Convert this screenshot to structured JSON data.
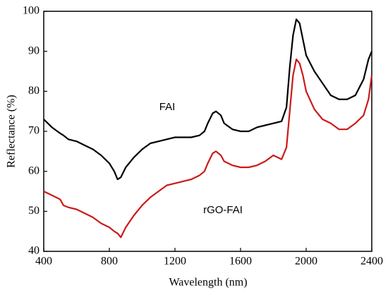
{
  "chart_data": {
    "type": "line",
    "x_label": "Wavelength (nm)",
    "y_label": "Reflectance (%)",
    "xlim": [
      400,
      2400
    ],
    "ylim": [
      40,
      100
    ],
    "xticks": [
      400,
      800,
      1200,
      1600,
      2000,
      2400
    ],
    "yticks": [
      40,
      50,
      60,
      70,
      80,
      90,
      100
    ],
    "x": [
      400,
      450,
      500,
      520,
      550,
      600,
      650,
      700,
      750,
      800,
      830,
      850,
      870,
      900,
      950,
      1000,
      1050,
      1100,
      1150,
      1200,
      1250,
      1300,
      1350,
      1380,
      1400,
      1430,
      1450,
      1480,
      1500,
      1550,
      1600,
      1650,
      1700,
      1750,
      1800,
      1850,
      1880,
      1900,
      1920,
      1940,
      1960,
      1980,
      2000,
      2050,
      2100,
      2150,
      2200,
      2250,
      2300,
      2350,
      2380,
      2400
    ],
    "series": [
      {
        "name": "FAI",
        "color": "#000000",
        "values": [
          73,
          71,
          69.5,
          69,
          68,
          67.5,
          66.5,
          65.5,
          64,
          62,
          60,
          58,
          58.5,
          61,
          63.5,
          65.5,
          67,
          67.5,
          68,
          68.5,
          68.5,
          68.5,
          69,
          70,
          72,
          74.5,
          75,
          74,
          72,
          70.5,
          70,
          70,
          71,
          71.5,
          72,
          72.5,
          76,
          86,
          94,
          98,
          97,
          93,
          89,
          85,
          82,
          79,
          78,
          78,
          79,
          83,
          88,
          90
        ]
      },
      {
        "name": "rGO-FAI",
        "color": "#cc1a1a",
        "values": [
          55,
          54,
          53,
          51.5,
          51,
          50.5,
          49.5,
          48.5,
          47,
          46,
          45,
          44.5,
          43.5,
          46,
          49,
          51.5,
          53.5,
          55,
          56.5,
          57,
          57.5,
          58,
          59,
          60,
          62,
          64.5,
          65,
          64,
          62.5,
          61.5,
          61,
          61,
          61.5,
          62.5,
          64,
          63,
          66,
          75,
          84,
          88,
          87,
          84,
          80,
          75.5,
          73,
          72,
          70.5,
          70.5,
          72,
          74,
          78,
          84
        ]
      }
    ]
  }
}
